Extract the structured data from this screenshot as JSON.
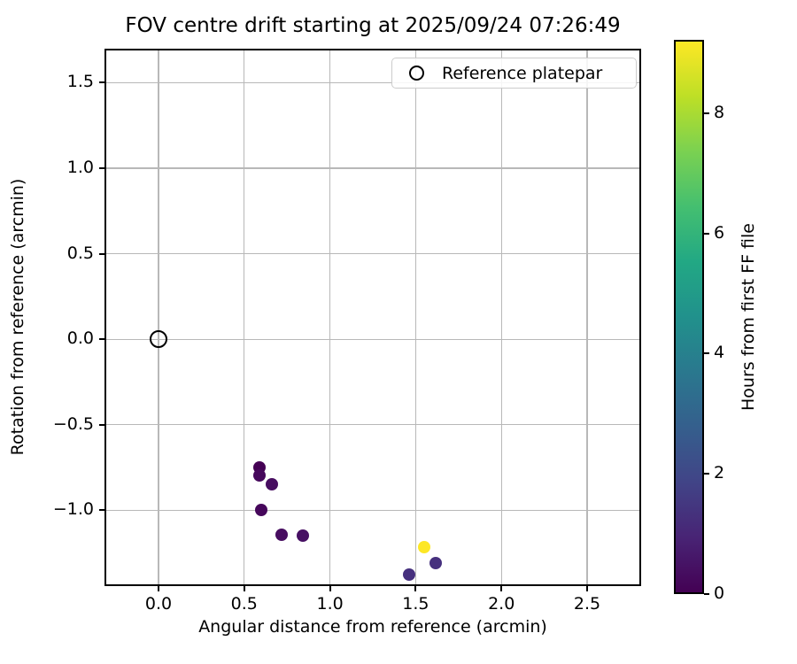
{
  "chart_data": {
    "type": "scatter",
    "title": "FOV centre drift starting at 2025/09/24 07:26:49",
    "xlabel": "Angular distance from reference (arcmin)",
    "ylabel": "Rotation from reference (arcmin)",
    "xlim": [
      -0.315,
      2.815
    ],
    "ylim": [
      -1.443,
      1.699
    ],
    "grid": true,
    "xticks": [
      {
        "value": 0.0,
        "label": "0.0"
      },
      {
        "value": 0.5,
        "label": "0.5"
      },
      {
        "value": 1.0,
        "label": "1.0"
      },
      {
        "value": 1.5,
        "label": "1.5"
      },
      {
        "value": 2.0,
        "label": "2.0"
      },
      {
        "value": 2.5,
        "label": "2.5"
      }
    ],
    "yticks": [
      {
        "value": 1.5,
        "label": "1.5"
      },
      {
        "value": 1.0,
        "label": "1.0"
      },
      {
        "value": 0.5,
        "label": "0.5"
      },
      {
        "value": 0.0,
        "label": "0.0"
      },
      {
        "value": -0.5,
        "label": "−0.5"
      },
      {
        "value": -1.0,
        "label": "−1.0"
      }
    ],
    "legend": {
      "position": "upper right",
      "entries": [
        {
          "label": "Reference platepar",
          "marker": "open-circle"
        }
      ]
    },
    "reference_point": {
      "x": 0.0,
      "y": 0.0
    },
    "points": [
      {
        "x": 0.588,
        "y": -0.748,
        "hours": 0.0,
        "color": "#440154"
      },
      {
        "x": 0.588,
        "y": -0.795,
        "hours": 0.3,
        "color": "#46085c"
      },
      {
        "x": 0.66,
        "y": -0.849,
        "hours": 0.5,
        "color": "#470d60"
      },
      {
        "x": 0.599,
        "y": -0.996,
        "hours": 0.3,
        "color": "#46075b"
      },
      {
        "x": 0.719,
        "y": -1.141,
        "hours": 0.5,
        "color": "#470d60"
      },
      {
        "x": 0.84,
        "y": -1.146,
        "hours": 0.6,
        "color": "#471063"
      },
      {
        "x": 1.548,
        "y": -1.213,
        "hours": 9.2,
        "color": "#fde725"
      },
      {
        "x": 1.615,
        "y": -1.306,
        "hours": 1.7,
        "color": "#46307e"
      },
      {
        "x": 1.46,
        "y": -1.376,
        "hours": 1.7,
        "color": "#46307e"
      }
    ],
    "colorbar": {
      "label": "Hours from first FF file",
      "vmin": 0,
      "vmax": 9.22,
      "ticks": [
        {
          "value": 0,
          "label": "0"
        },
        {
          "value": 2,
          "label": "2"
        },
        {
          "value": 4,
          "label": "4"
        },
        {
          "value": 6,
          "label": "6"
        },
        {
          "value": 8,
          "label": "8"
        }
      ],
      "colormap": "viridis",
      "colormap_stops": [
        "#440154",
        "#482475",
        "#414487",
        "#355f8d",
        "#2a788e",
        "#21918c",
        "#22a884",
        "#44bf70",
        "#7ad151",
        "#bddf26",
        "#fde725"
      ]
    },
    "style": {
      "grid_color": "#b8b8b8",
      "spine_color": "#000000",
      "background": "#ffffff"
    }
  }
}
